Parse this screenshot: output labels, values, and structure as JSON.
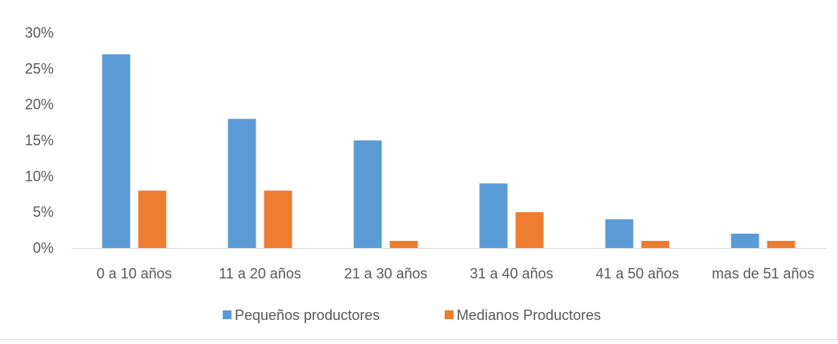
{
  "chart_data": {
    "type": "bar",
    "title": "",
    "xlabel": "",
    "ylabel": "",
    "categories": [
      "0 a 10 años",
      "11 a 20 años",
      "21 a 30 años",
      "31 a 40 años",
      "41 a 50 años",
      "mas de 51 años"
    ],
    "series": [
      {
        "name": "Pequeños productores",
        "color": "#5b9bd5",
        "values": [
          0.27,
          0.18,
          0.15,
          0.09,
          0.04,
          0.02
        ]
      },
      {
        "name": "Medianos Productores",
        "color": "#ed7d31",
        "values": [
          0.08,
          0.08,
          0.01,
          0.05,
          0.01,
          0.01
        ]
      }
    ],
    "ylim": [
      0,
      0.3
    ],
    "yticks": [
      {
        "value": 0.0,
        "label": "0%"
      },
      {
        "value": 0.05,
        "label": "5%"
      },
      {
        "value": 0.1,
        "label": "10%"
      },
      {
        "value": 0.15,
        "label": "15%"
      },
      {
        "value": 0.2,
        "label": "20%"
      },
      {
        "value": 0.25,
        "label": "25%"
      },
      {
        "value": 0.3,
        "label": "30%"
      }
    ],
    "grid": false,
    "legend_position": "bottom"
  }
}
